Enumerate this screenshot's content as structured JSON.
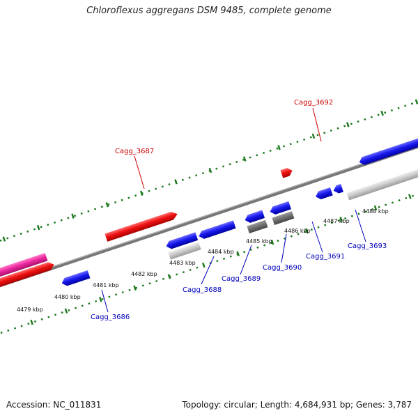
{
  "title": "Chloroflexus aggregans DSM 9485, complete genome",
  "footer": {
    "accession": "Accession: NC_011831",
    "topology": "Topology: circular; Length: 4,684,931 bp; Genes: 3,787"
  },
  "colors": {
    "backbone": "#777777",
    "tick": "#1e7a1e",
    "forward_gene": "#ee1111",
    "reverse_gene": "#1a1aee",
    "pink_gene": "#ee2aa0",
    "light_grey_gene": "#c8c8c8",
    "dark_grey_gene": "#6e6e6e",
    "forward_label": "#cc0000",
    "reverse_label": "#0000bb"
  },
  "kbp_labels": [
    "4479 kbp",
    "4480 kbp",
    "4481 kbp",
    "4482 kbp",
    "4483 kbp",
    "4484 kbp",
    "4485 kbp",
    "4486 kbp",
    "4487 kbp",
    "4488 kbp"
  ],
  "gene_labels": [
    "Cagg_3686",
    "Cagg_3687",
    "Cagg_3688",
    "Cagg_3689",
    "Cagg_3690",
    "Cagg_3691",
    "Cagg_3692",
    "Cagg_3693"
  ]
}
